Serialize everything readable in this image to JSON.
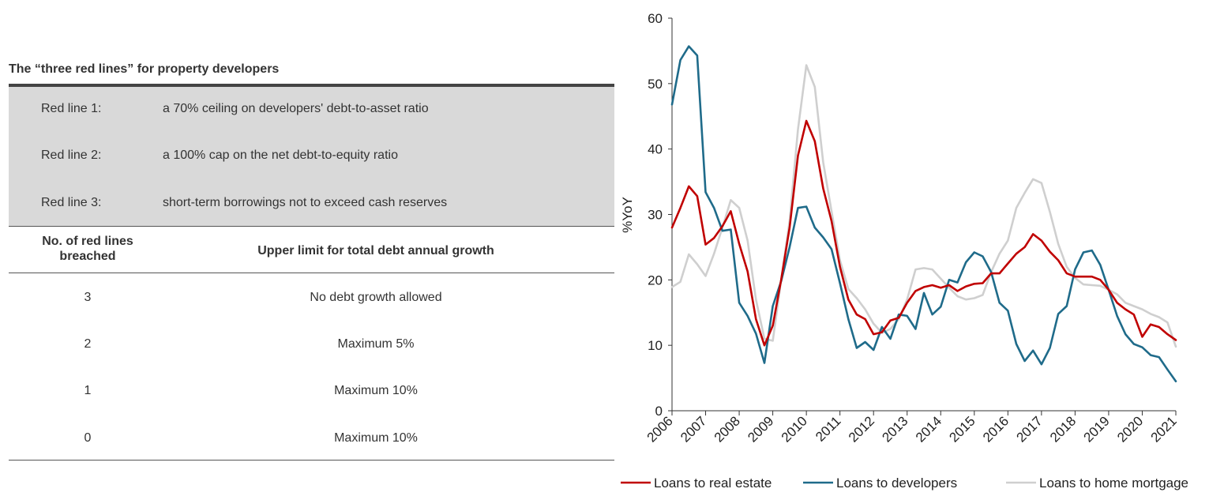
{
  "table": {
    "title": "The “three red lines” for property developers",
    "red_lines": [
      {
        "label": "Red line 1:",
        "desc": "a 70% ceiling on developers' debt-to-asset ratio"
      },
      {
        "label": "Red line 2:",
        "desc": "a 100% cap on the net debt-to-equity ratio"
      },
      {
        "label": "Red line 3:",
        "desc": "short-term borrowings not to exceed cash reserves"
      }
    ],
    "header": {
      "col1_line1": "No. of red lines",
      "col1_line2": "breached",
      "col2": "Upper limit for total debt annual growth"
    },
    "rows": [
      {
        "breached": "3",
        "limit": "No debt growth allowed"
      },
      {
        "breached": "2",
        "limit": "Maximum 5%"
      },
      {
        "breached": "1",
        "limit": "Maximum 10%"
      },
      {
        "breached": "0",
        "limit": "Maximum 10%"
      }
    ]
  },
  "chart_data": {
    "type": "line",
    "title": "",
    "xlabel": "",
    "ylabel": "%YoY",
    "ylim": [
      0,
      60
    ],
    "yticks": [
      "0",
      "10",
      "20",
      "30",
      "40",
      "50",
      "60"
    ],
    "xlim": [
      2006,
      2021
    ],
    "xticks": [
      "2006",
      "2007",
      "2008",
      "2009",
      "2010",
      "2011",
      "2012",
      "2013",
      "2014",
      "2015",
      "2016",
      "2017",
      "2018",
      "2019",
      "2020",
      "2021"
    ],
    "legend_position": "bottom",
    "series": [
      {
        "name": "Loans to real estate",
        "color": "#c00000",
        "points": [
          [
            2006.0,
            28
          ],
          [
            2006.25,
            31
          ],
          [
            2006.5,
            34.3
          ],
          [
            2006.75,
            32.8
          ],
          [
            2007.0,
            25.4
          ],
          [
            2007.25,
            26.4
          ],
          [
            2007.5,
            28.2
          ],
          [
            2007.75,
            30.5
          ],
          [
            2008.0,
            25.5
          ],
          [
            2008.25,
            21.3
          ],
          [
            2008.5,
            14
          ],
          [
            2008.75,
            10
          ],
          [
            2009.0,
            13
          ],
          [
            2009.25,
            20
          ],
          [
            2009.5,
            28
          ],
          [
            2009.75,
            39
          ],
          [
            2010.0,
            44.3
          ],
          [
            2010.25,
            41.2
          ],
          [
            2010.5,
            34
          ],
          [
            2010.75,
            29
          ],
          [
            2011.0,
            22
          ],
          [
            2011.25,
            17
          ],
          [
            2011.5,
            14.7
          ],
          [
            2011.75,
            14
          ],
          [
            2012.0,
            11.7
          ],
          [
            2012.25,
            12
          ],
          [
            2012.5,
            13.8
          ],
          [
            2012.75,
            14.2
          ],
          [
            2013.0,
            16.5
          ],
          [
            2013.25,
            18.3
          ],
          [
            2013.5,
            18.9
          ],
          [
            2013.75,
            19.2
          ],
          [
            2014.0,
            18.8
          ],
          [
            2014.25,
            19.2
          ],
          [
            2014.5,
            18.3
          ],
          [
            2014.75,
            19
          ],
          [
            2015.0,
            19.4
          ],
          [
            2015.25,
            19.5
          ],
          [
            2015.5,
            21
          ],
          [
            2015.75,
            21
          ],
          [
            2016.0,
            22.5
          ],
          [
            2016.25,
            24
          ],
          [
            2016.5,
            25
          ],
          [
            2016.75,
            27
          ],
          [
            2017.0,
            26
          ],
          [
            2017.25,
            24.3
          ],
          [
            2017.5,
            23
          ],
          [
            2017.75,
            21
          ],
          [
            2018.0,
            20.5
          ],
          [
            2018.25,
            20.5
          ],
          [
            2018.5,
            20.5
          ],
          [
            2018.75,
            20
          ],
          [
            2019.0,
            18.5
          ],
          [
            2019.25,
            16.5
          ],
          [
            2019.5,
            15.5
          ],
          [
            2019.75,
            14.7
          ],
          [
            2020.0,
            11.3
          ],
          [
            2020.25,
            13.2
          ],
          [
            2020.5,
            12.8
          ],
          [
            2020.75,
            11.7
          ],
          [
            2021.0,
            10.8
          ]
        ]
      },
      {
        "name": "Loans to developers",
        "color": "#1f6b8a",
        "points": [
          [
            2006.0,
            46.8
          ],
          [
            2006.25,
            53.6
          ],
          [
            2006.5,
            55.7
          ],
          [
            2006.75,
            54.3
          ],
          [
            2007.0,
            33.4
          ],
          [
            2007.25,
            31
          ],
          [
            2007.5,
            27.5
          ],
          [
            2007.75,
            27.7
          ],
          [
            2008.0,
            16.5
          ],
          [
            2008.25,
            14.5
          ],
          [
            2008.5,
            11.8
          ],
          [
            2008.75,
            7.3
          ],
          [
            2009.0,
            16
          ],
          [
            2009.25,
            19.8
          ],
          [
            2009.5,
            25
          ],
          [
            2009.75,
            31
          ],
          [
            2010.0,
            31.2
          ],
          [
            2010.25,
            28
          ],
          [
            2010.5,
            26.5
          ],
          [
            2010.75,
            24.7
          ],
          [
            2011.0,
            19.5
          ],
          [
            2011.25,
            14
          ],
          [
            2011.5,
            9.6
          ],
          [
            2011.75,
            10.5
          ],
          [
            2012.0,
            9.3
          ],
          [
            2012.25,
            12.8
          ],
          [
            2012.5,
            11
          ],
          [
            2012.75,
            14.7
          ],
          [
            2013.0,
            14.5
          ],
          [
            2013.25,
            12.5
          ],
          [
            2013.5,
            18
          ],
          [
            2013.75,
            14.7
          ],
          [
            2014.0,
            15.9
          ],
          [
            2014.25,
            20
          ],
          [
            2014.5,
            19.6
          ],
          [
            2014.75,
            22.7
          ],
          [
            2015.0,
            24.2
          ],
          [
            2015.25,
            23.6
          ],
          [
            2015.5,
            21.2
          ],
          [
            2015.75,
            16.5
          ],
          [
            2016.0,
            15.3
          ],
          [
            2016.25,
            10.2
          ],
          [
            2016.5,
            7.6
          ],
          [
            2016.75,
            9.2
          ],
          [
            2017.0,
            7.1
          ],
          [
            2017.25,
            9.6
          ],
          [
            2017.5,
            14.8
          ],
          [
            2017.75,
            16
          ],
          [
            2018.0,
            21.6
          ],
          [
            2018.25,
            24.2
          ],
          [
            2018.5,
            24.5
          ],
          [
            2018.75,
            22.3
          ],
          [
            2019.0,
            18.5
          ],
          [
            2019.25,
            14.5
          ],
          [
            2019.5,
            11.7
          ],
          [
            2019.75,
            10.2
          ],
          [
            2020.0,
            9.7
          ],
          [
            2020.25,
            8.5
          ],
          [
            2020.5,
            8.2
          ],
          [
            2020.75,
            6.3
          ],
          [
            2021.0,
            4.5
          ]
        ]
      },
      {
        "name": "Loans to home mortgage",
        "color": "#cfcfcf",
        "points": [
          [
            2006.0,
            18.9
          ],
          [
            2006.25,
            19.7
          ],
          [
            2006.5,
            23.9
          ],
          [
            2006.75,
            22.4
          ],
          [
            2007.0,
            20.6
          ],
          [
            2007.25,
            24
          ],
          [
            2007.5,
            28
          ],
          [
            2007.75,
            32.2
          ],
          [
            2008.0,
            31
          ],
          [
            2008.25,
            26
          ],
          [
            2008.5,
            17
          ],
          [
            2008.75,
            11
          ],
          [
            2009.0,
            10.7
          ],
          [
            2009.25,
            20
          ],
          [
            2009.5,
            29
          ],
          [
            2009.75,
            43
          ],
          [
            2010.0,
            52.8
          ],
          [
            2010.25,
            49.5
          ],
          [
            2010.5,
            38
          ],
          [
            2010.75,
            30.5
          ],
          [
            2011.0,
            23
          ],
          [
            2011.25,
            18.6
          ],
          [
            2011.5,
            17.2
          ],
          [
            2011.75,
            15.5
          ],
          [
            2012.0,
            13.3
          ],
          [
            2012.25,
            11.9
          ],
          [
            2012.5,
            12.5
          ],
          [
            2012.75,
            14
          ],
          [
            2013.0,
            17
          ],
          [
            2013.25,
            21.6
          ],
          [
            2013.5,
            21.8
          ],
          [
            2013.75,
            21.6
          ],
          [
            2014.0,
            20.2
          ],
          [
            2014.25,
            18.8
          ],
          [
            2014.5,
            17.5
          ],
          [
            2014.75,
            17
          ],
          [
            2015.0,
            17.2
          ],
          [
            2015.25,
            17.7
          ],
          [
            2015.5,
            21.2
          ],
          [
            2015.75,
            24
          ],
          [
            2016.0,
            26
          ],
          [
            2016.25,
            31
          ],
          [
            2016.5,
            33.3
          ],
          [
            2016.75,
            35.4
          ],
          [
            2017.0,
            34.8
          ],
          [
            2017.25,
            30.4
          ],
          [
            2017.5,
            25.5
          ],
          [
            2017.75,
            22
          ],
          [
            2018.0,
            20.3
          ],
          [
            2018.25,
            19.3
          ],
          [
            2018.5,
            19.2
          ],
          [
            2018.75,
            19.1
          ],
          [
            2019.0,
            18.5
          ],
          [
            2019.25,
            17.8
          ],
          [
            2019.5,
            16.5
          ],
          [
            2019.75,
            16
          ],
          [
            2020.0,
            15.5
          ],
          [
            2020.25,
            14.8
          ],
          [
            2020.5,
            14.3
          ],
          [
            2020.75,
            13.5
          ],
          [
            2021.0,
            9.8
          ]
        ]
      }
    ]
  }
}
